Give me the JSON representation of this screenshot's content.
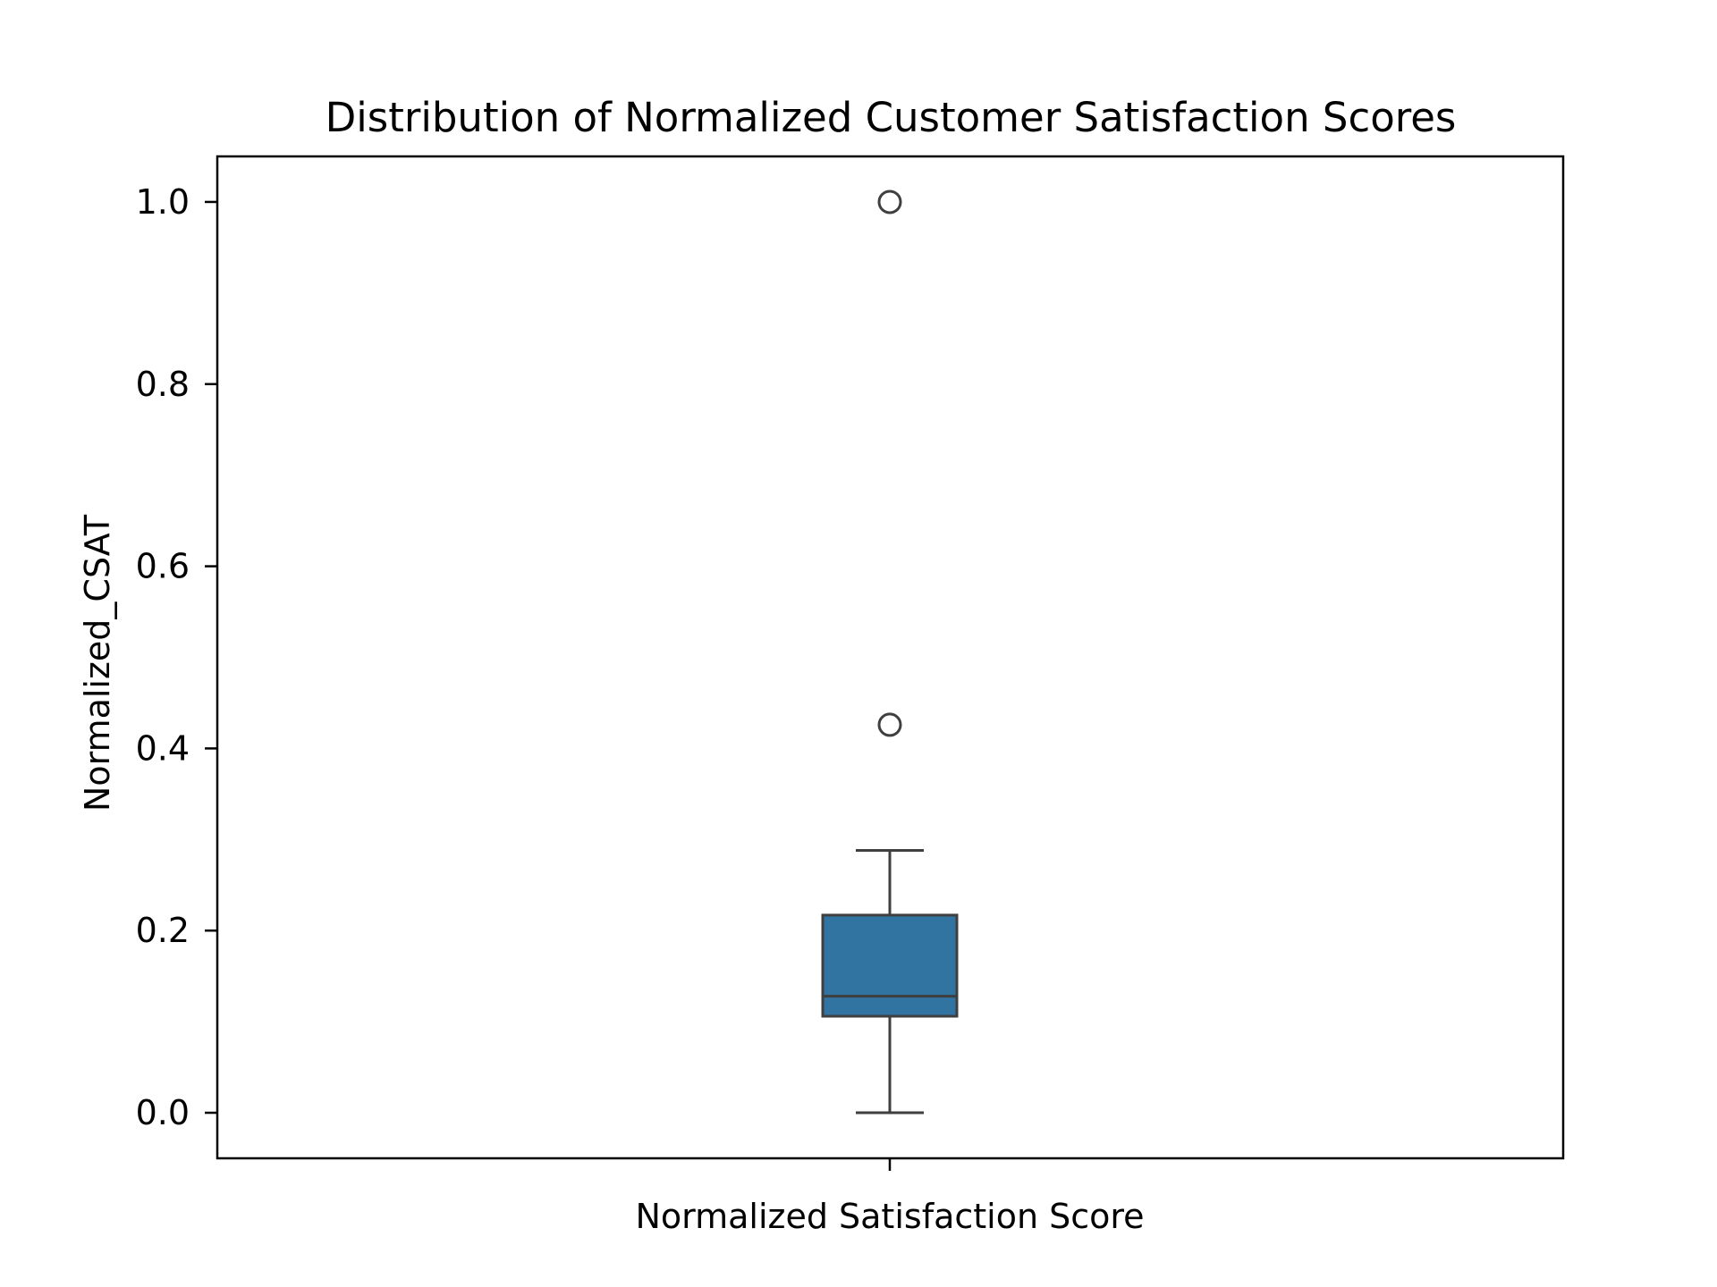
{
  "chart_data": {
    "type": "box",
    "title": "Distribution of Normalized Customer Satisfaction Scores",
    "xlabel": "Normalized Satisfaction Score",
    "ylabel": "Normalized_CSAT",
    "ylim": [
      -0.05,
      1.05
    ],
    "yticks": [
      "0.0",
      "0.2",
      "0.4",
      "0.6",
      "0.8",
      "1.0"
    ],
    "grid": false,
    "legend": "none",
    "box": {
      "whisker_low": 0.0,
      "q1": 0.106,
      "median": 0.128,
      "q3": 0.217,
      "whisker_high": 0.288,
      "outliers": [
        1.0,
        0.426
      ]
    },
    "colors": {
      "box_fill": "#3274a1",
      "box_edge": "#3f3f3f",
      "frame": "#000000"
    }
  }
}
